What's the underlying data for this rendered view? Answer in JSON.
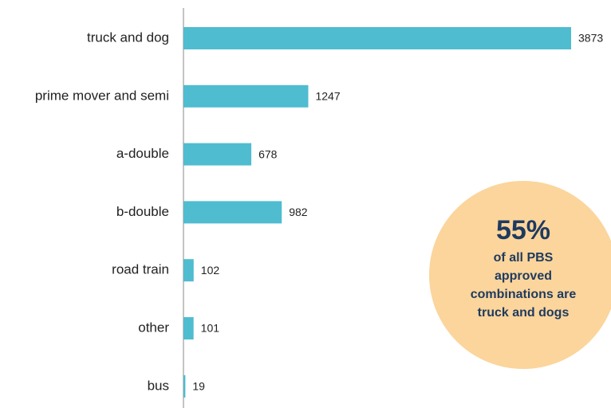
{
  "chart_data": {
    "type": "bar",
    "orientation": "horizontal",
    "categories": [
      "truck and dog",
      "prime mover and semi",
      "a-double",
      "b-double",
      "road train",
      "other",
      "bus"
    ],
    "values": [
      3873,
      1247,
      678,
      982,
      102,
      101,
      19
    ],
    "color": "#4fbcd0",
    "annotation": {
      "headline": "55%",
      "lines": [
        "of all PBS",
        "approved",
        "combinations are",
        "truck and dogs"
      ],
      "color": "#fbd59b"
    }
  }
}
